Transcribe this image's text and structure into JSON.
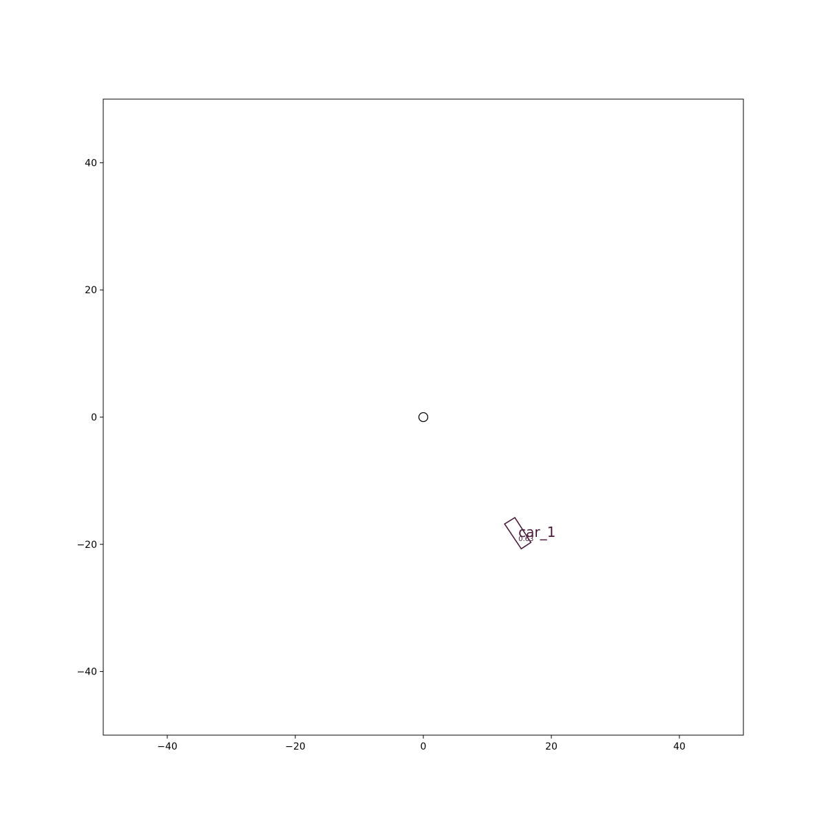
{
  "chart_data": {
    "type": "scatter",
    "title": "",
    "xlabel": "",
    "ylabel": "",
    "xlim": [
      -50,
      50
    ],
    "ylim": [
      -50,
      50
    ],
    "grid": false,
    "xticks": [
      -40,
      -20,
      0,
      20,
      40
    ],
    "yticks": [
      -40,
      20,
      0,
      -20,
      40
    ],
    "ego": {
      "x": 0,
      "y": 0
    },
    "objects": [
      {
        "label": "car_1",
        "score": "0.63",
        "center": [
          14.8,
          -18.2
        ],
        "corners": [
          [
            12.7,
            -16.8
          ],
          [
            14.3,
            -15.8
          ],
          [
            16.8,
            -19.7
          ],
          [
            15.3,
            -20.7
          ]
        ],
        "color": "#4a1a3a"
      }
    ]
  }
}
